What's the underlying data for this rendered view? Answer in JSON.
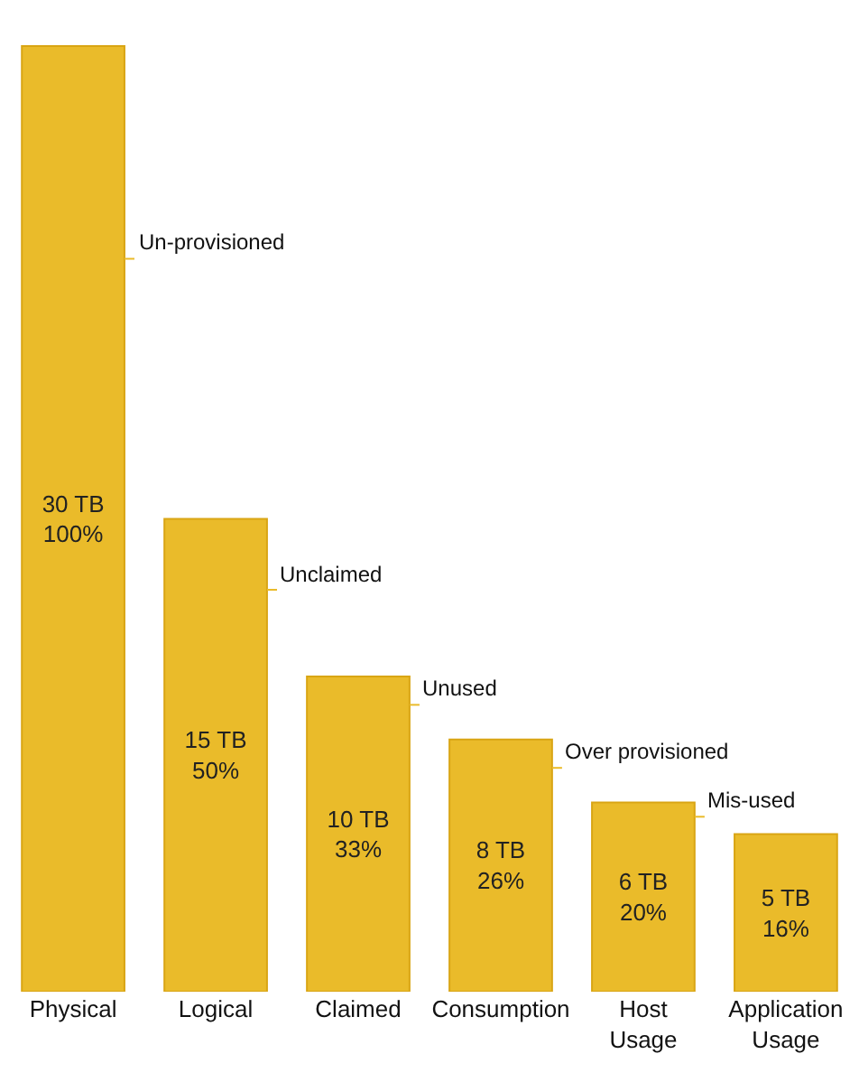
{
  "chart_data": {
    "type": "bar",
    "categories": [
      "Physical",
      "Logical",
      "Claimed",
      "Consumption",
      "Host Usage",
      "Application Usage"
    ],
    "values": [
      30,
      15,
      10,
      8,
      6,
      5
    ],
    "color": "#eabb2a",
    "value_labels": [
      "30 TB\n100%",
      "15 TB\n50%",
      "10 TB\n33%",
      "8 TB\n26%",
      "6 TB\n20%",
      "5 TB\n16%"
    ],
    "annotations": [
      "Un-provisioned",
      "Unclaimed",
      "Unused",
      "Over provisioned",
      "Mis-used"
    ],
    "legend": false
  }
}
